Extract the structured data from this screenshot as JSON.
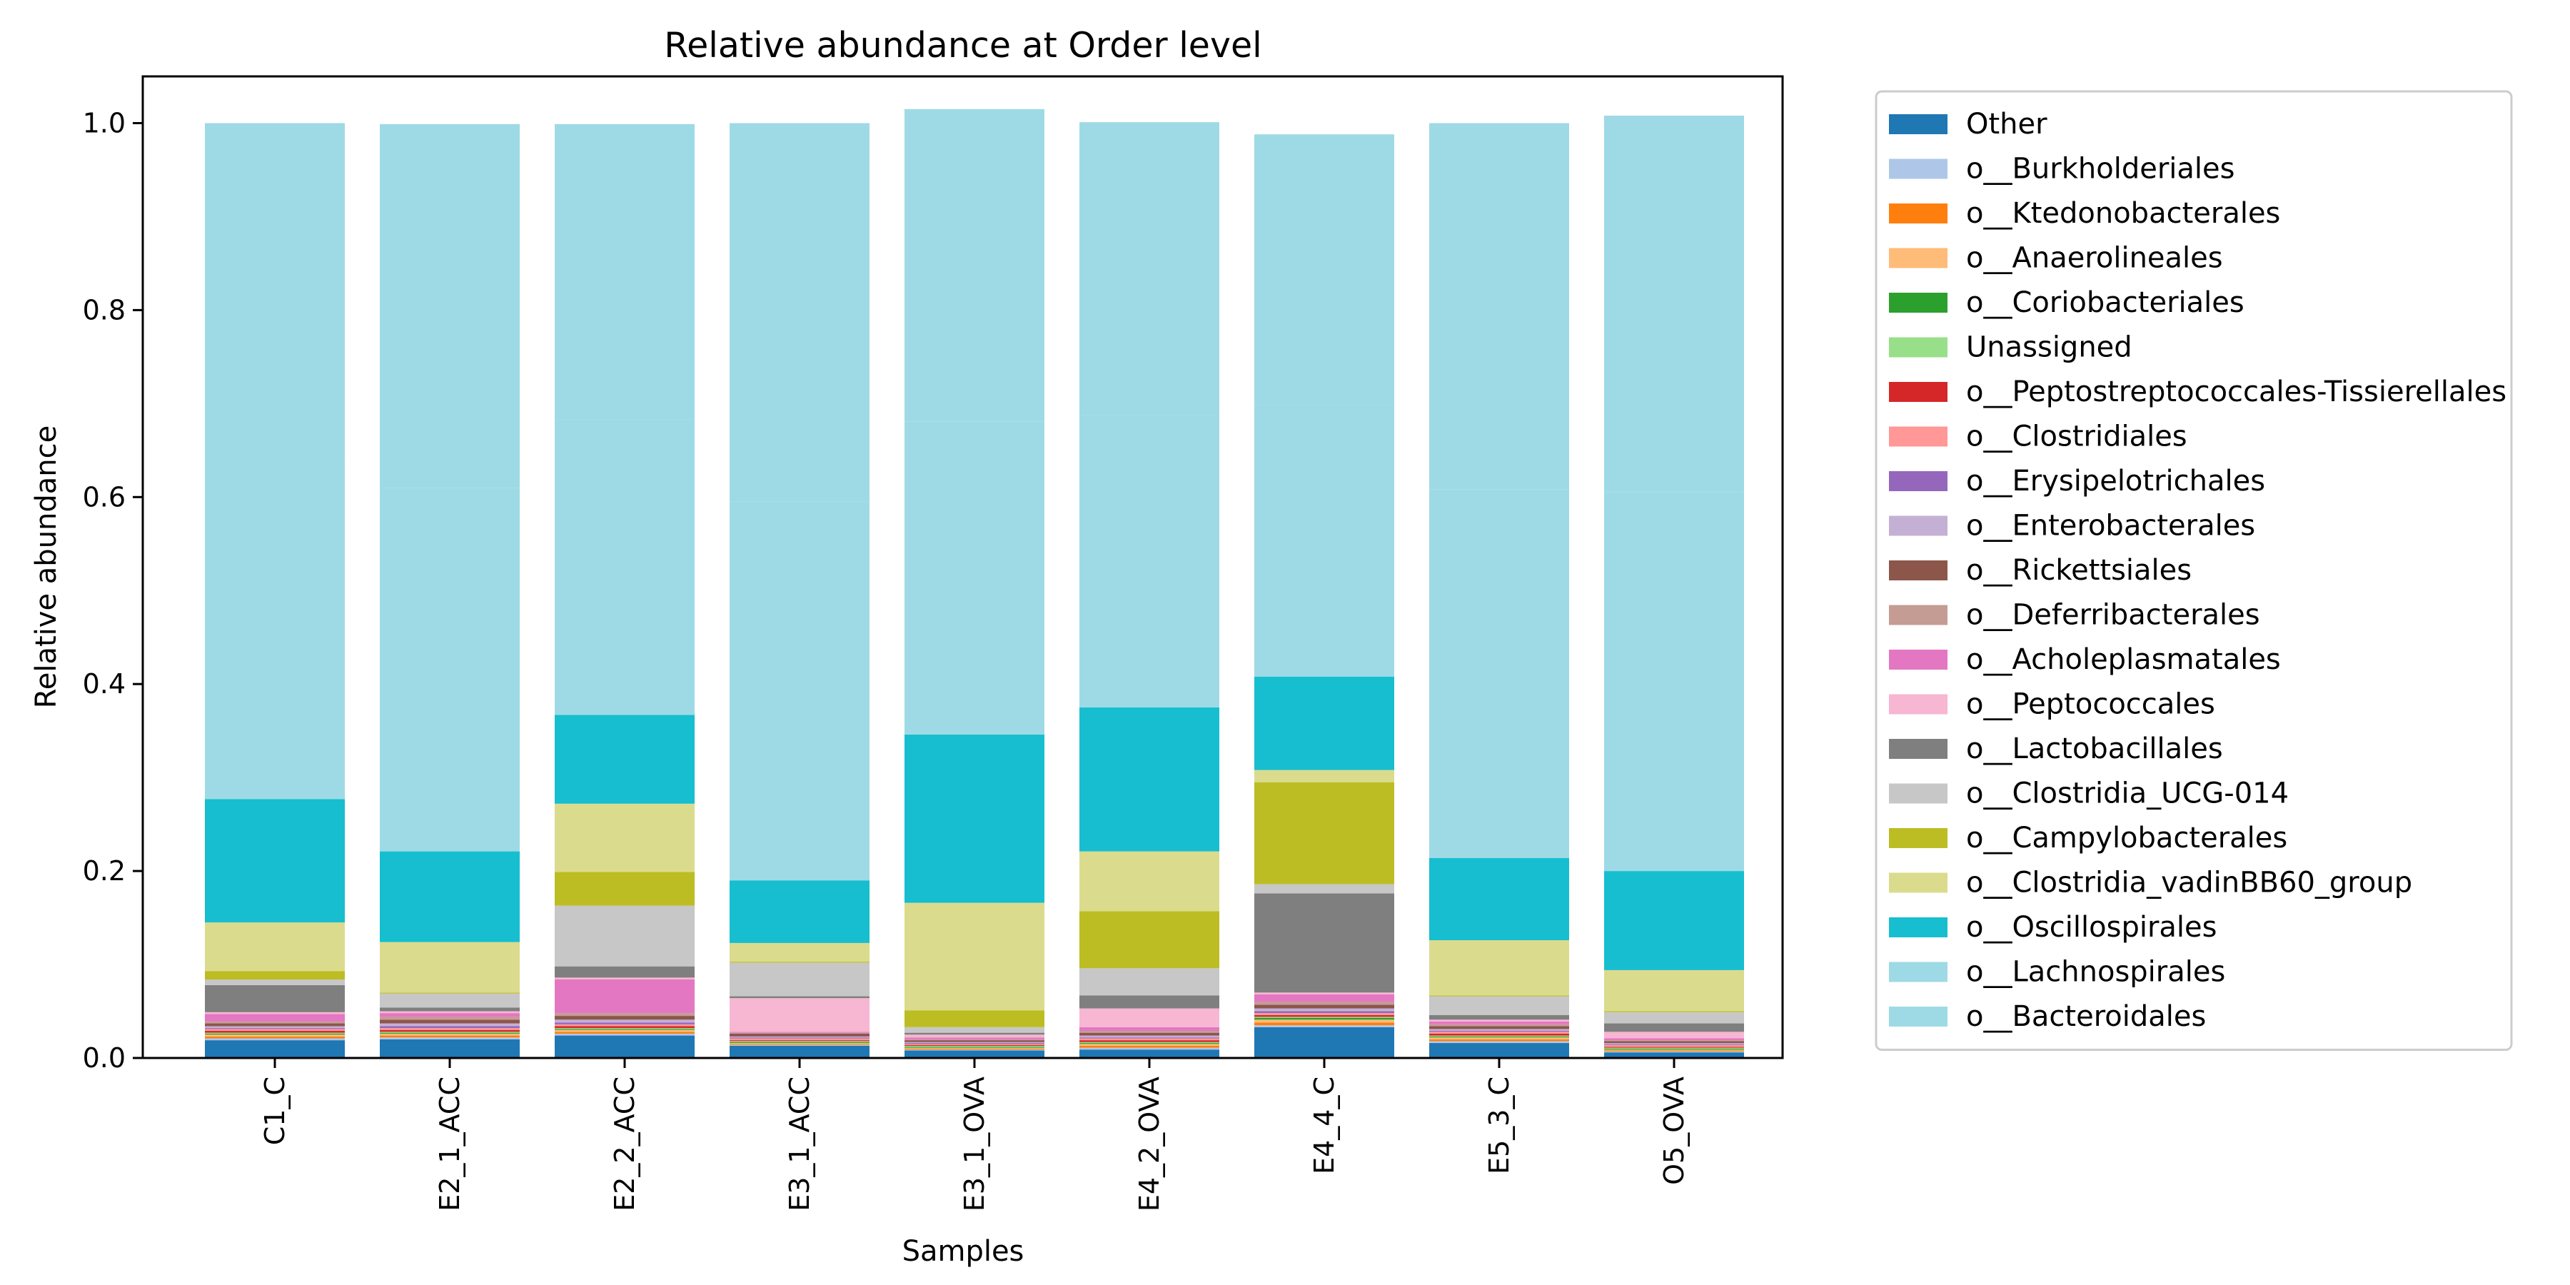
{
  "chart_data": {
    "type": "bar",
    "stacked": true,
    "title": "Relative abundance at Order level",
    "xlabel": "Samples",
    "ylabel": "Relative abundance",
    "ylim": [
      0,
      1.05
    ],
    "yticks": [
      "0.0",
      "0.2",
      "0.4",
      "0.6",
      "0.8",
      "1.0"
    ],
    "ytick_values": [
      0,
      0.2,
      0.4,
      0.6,
      0.8,
      1.0
    ],
    "legend_position": "outside-right",
    "grid": false,
    "categories": [
      "C1_C",
      "E2_1_ACC",
      "E2_2_ACC",
      "E3_1_ACC",
      "E3_1_OVA",
      "E4_2_OVA",
      "E4_4_C",
      "E5_3_C",
      "O5_OVA"
    ],
    "series": [
      {
        "name": "Other",
        "color": "#1f77b4",
        "values": [
          0.019,
          0.02,
          0.024,
          0.013,
          0.008,
          0.009,
          0.033,
          0.016,
          0.006
        ]
      },
      {
        "name": "o__Burkholderiales",
        "color": "#aec7e8",
        "values": [
          0.002,
          0.002,
          0.002,
          0.001,
          0.001,
          0.002,
          0.002,
          0.002,
          0.001
        ]
      },
      {
        "name": "o__Ktedonobacterales",
        "color": "#ff7f0e",
        "values": [
          0.002,
          0.002,
          0.002,
          0.001,
          0.001,
          0.002,
          0.003,
          0.002,
          0.001
        ]
      },
      {
        "name": "o__Anaerolineales",
        "color": "#ffbb78",
        "values": [
          0.002,
          0.002,
          0.002,
          0.001,
          0.001,
          0.002,
          0.003,
          0.002,
          0.001
        ]
      },
      {
        "name": "o__Coriobacteriales",
        "color": "#2ca02c",
        "values": [
          0.001,
          0.001,
          0.001,
          0.001,
          0.001,
          0.001,
          0.002,
          0.001,
          0.001
        ]
      },
      {
        "name": "Unassigned",
        "color": "#98df8a",
        "values": [
          0.001,
          0.001,
          0.001,
          0.001,
          0.001,
          0.001,
          0.001,
          0.001,
          0.001
        ]
      },
      {
        "name": "o__Peptostreptococcales-Tissierellales",
        "color": "#d62728",
        "values": [
          0.002,
          0.002,
          0.002,
          0.001,
          0.001,
          0.002,
          0.002,
          0.002,
          0.001
        ]
      },
      {
        "name": "o__Clostridiales",
        "color": "#ff9896",
        "values": [
          0.002,
          0.002,
          0.002,
          0.002,
          0.001,
          0.002,
          0.002,
          0.002,
          0.002
        ]
      },
      {
        "name": "o__Erysipelotrichales",
        "color": "#9467bd",
        "values": [
          0.001,
          0.002,
          0.002,
          0.001,
          0.001,
          0.001,
          0.002,
          0.001,
          0.001
        ]
      },
      {
        "name": "o__Enterobacterales",
        "color": "#c5b0d5",
        "values": [
          0.002,
          0.003,
          0.003,
          0.001,
          0.001,
          0.002,
          0.003,
          0.002,
          0.001
        ]
      },
      {
        "name": "o__Rickettsiales",
        "color": "#8c564b",
        "values": [
          0.003,
          0.004,
          0.004,
          0.003,
          0.002,
          0.003,
          0.004,
          0.003,
          0.002
        ]
      },
      {
        "name": "o__Deferribacterales",
        "color": "#c49c94",
        "values": [
          0.002,
          0.003,
          0.003,
          0.001,
          0.001,
          0.002,
          0.003,
          0.002,
          0.001
        ]
      },
      {
        "name": "o__Acholeplasmatales",
        "color": "#e377c2",
        "values": [
          0.008,
          0.004,
          0.036,
          0.001,
          0.002,
          0.004,
          0.008,
          0.003,
          0.002
        ]
      },
      {
        "name": "o__Peptococcales",
        "color": "#f7b6d2",
        "values": [
          0.002,
          0.002,
          0.002,
          0.036,
          0.003,
          0.02,
          0.002,
          0.002,
          0.007
        ]
      },
      {
        "name": "o__Lactobacillales",
        "color": "#7f7f7f",
        "values": [
          0.029,
          0.004,
          0.012,
          0.002,
          0.002,
          0.014,
          0.106,
          0.005,
          0.009
        ]
      },
      {
        "name": "o__Clostridia_UCG-014",
        "color": "#c7c7c7",
        "values": [
          0.006,
          0.015,
          0.065,
          0.036,
          0.006,
          0.029,
          0.01,
          0.02,
          0.012
        ]
      },
      {
        "name": "o__Campylobacterales",
        "color": "#bcbd22",
        "values": [
          0.009,
          0.001,
          0.036,
          0.001,
          0.018,
          0.061,
          0.109,
          0.001,
          0.001
        ]
      },
      {
        "name": "o__Clostridia_vadinBB60_group",
        "color": "#dbdb8d",
        "values": [
          0.052,
          0.054,
          0.073,
          0.02,
          0.115,
          0.064,
          0.013,
          0.059,
          0.044
        ]
      },
      {
        "name": "o__Oscillospirales",
        "color": "#17becf",
        "values": [
          0.132,
          0.097,
          0.095,
          0.067,
          0.18,
          0.154,
          0.1,
          0.088,
          0.106
        ]
      },
      {
        "name": "o__Lachnospirales",
        "color": "#9edae5",
        "values": [
          0.361,
          0.389,
          0.316,
          0.405,
          0.335,
          0.313,
          0.29,
          0.394,
          0.405
        ]
      },
      {
        "name": "o__Bacteroidales",
        "color": "#9edae5",
        "values": [
          0.362,
          0.389,
          0.316,
          0.405,
          0.334,
          0.313,
          0.29,
          0.392,
          0.403
        ]
      }
    ]
  }
}
